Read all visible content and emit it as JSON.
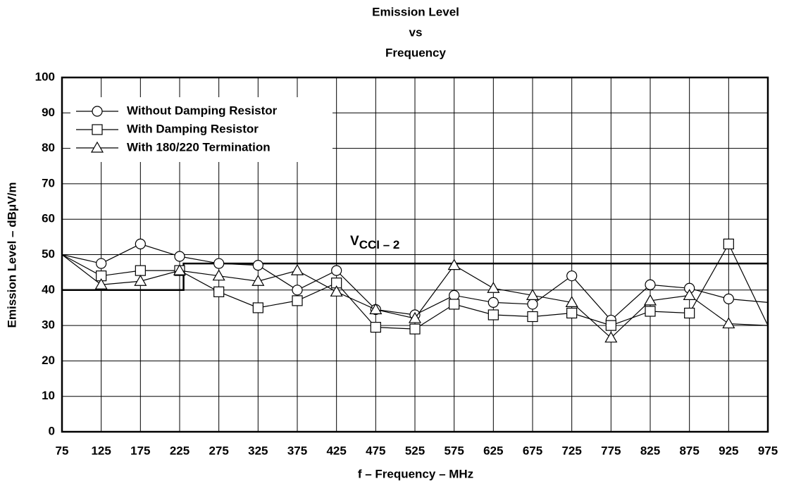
{
  "chart_data": {
    "type": "line",
    "title": [
      "Emission Level",
      "vs",
      "Frequency"
    ],
    "xlabel": "f – Frequency – MHz",
    "ylabel": "Emission Level – dBμV/m",
    "x": [
      75,
      125,
      175,
      225,
      275,
      325,
      375,
      425,
      475,
      525,
      575,
      625,
      675,
      725,
      775,
      825,
      875,
      925,
      975
    ],
    "series": [
      {
        "name": "Without Damping Resistor",
        "marker": "circle",
        "color": "#000000",
        "values": [
          50,
          47.5,
          53,
          49.5,
          47.5,
          47,
          40,
          45.5,
          34.5,
          33,
          38.5,
          36.5,
          36,
          44,
          31.5,
          41.5,
          40.5,
          37.5,
          36.5
        ]
      },
      {
        "name": "With Damping Resistor",
        "marker": "square",
        "color": "#000000",
        "values": [
          50,
          44,
          45.5,
          45.5,
          39.5,
          35,
          37,
          42,
          29.5,
          29,
          36,
          33,
          32.5,
          33.5,
          30,
          34,
          33.5,
          53,
          30
        ]
      },
      {
        "name": "With 180/220 Termination",
        "marker": "triangle",
        "color": "#000000",
        "values": [
          50,
          41.5,
          42.5,
          45.5,
          44,
          42.5,
          45.5,
          39.5,
          34.5,
          32,
          47,
          40.5,
          38.5,
          36.5,
          26.5,
          37,
          38.5,
          30.5,
          30
        ]
      }
    ],
    "limit": {
      "label": "V",
      "sub": "CCI – 2",
      "x": [
        75,
        230,
        230,
        975
      ],
      "values": [
        40,
        40,
        47.5,
        47.5
      ]
    },
    "xlim": [
      75,
      975
    ],
    "xticks": [
      75,
      125,
      175,
      225,
      275,
      325,
      375,
      425,
      475,
      525,
      575,
      625,
      675,
      725,
      775,
      825,
      875,
      925,
      975
    ],
    "ylim": [
      0,
      100
    ],
    "yticks": [
      0,
      10,
      20,
      30,
      40,
      50,
      60,
      70,
      80,
      90,
      100
    ],
    "grid": true,
    "legend": "upper left"
  }
}
